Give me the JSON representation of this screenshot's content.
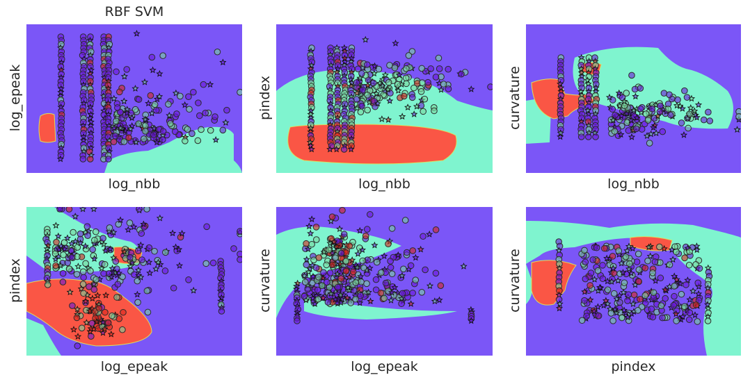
{
  "figure": {
    "title": "RBF SVM"
  },
  "colors": {
    "region_purple": "#7b56f7",
    "region_teal": "#7ff4cf",
    "region_red": "#fa5645",
    "point_purple": "#6a17d8",
    "point_green": "#7ad69e",
    "point_red": "#d8271e",
    "point_edge": "#2b2b2b"
  },
  "chart_data": [
    {
      "type": "scatter",
      "title": "RBF SVM",
      "xlabel": "log_nbb",
      "ylabel": "log_epeak",
      "grid": false,
      "ticks": "hidden",
      "background": "decision regions (purple / teal / red)"
    },
    {
      "type": "scatter",
      "title": "",
      "xlabel": "log_nbb",
      "ylabel": "pindex",
      "grid": false,
      "ticks": "hidden",
      "background": "decision regions (purple / teal / red)"
    },
    {
      "type": "scatter",
      "title": "",
      "xlabel": "log_nbb",
      "ylabel": "curvature",
      "grid": false,
      "ticks": "hidden",
      "background": "decision regions (purple / teal / red)"
    },
    {
      "type": "scatter",
      "title": "",
      "xlabel": "log_epeak",
      "ylabel": "pindex",
      "grid": false,
      "ticks": "hidden",
      "background": "decision regions (purple / teal / red)"
    },
    {
      "type": "scatter",
      "title": "",
      "xlabel": "log_epeak",
      "ylabel": "curvature",
      "grid": false,
      "ticks": "hidden",
      "background": "decision regions (purple / teal / red)"
    },
    {
      "type": "scatter",
      "title": "",
      "xlabel": "pindex",
      "ylabel": "curvature",
      "grid": false,
      "ticks": "hidden",
      "background": "decision regions (purple / teal / red)"
    }
  ]
}
